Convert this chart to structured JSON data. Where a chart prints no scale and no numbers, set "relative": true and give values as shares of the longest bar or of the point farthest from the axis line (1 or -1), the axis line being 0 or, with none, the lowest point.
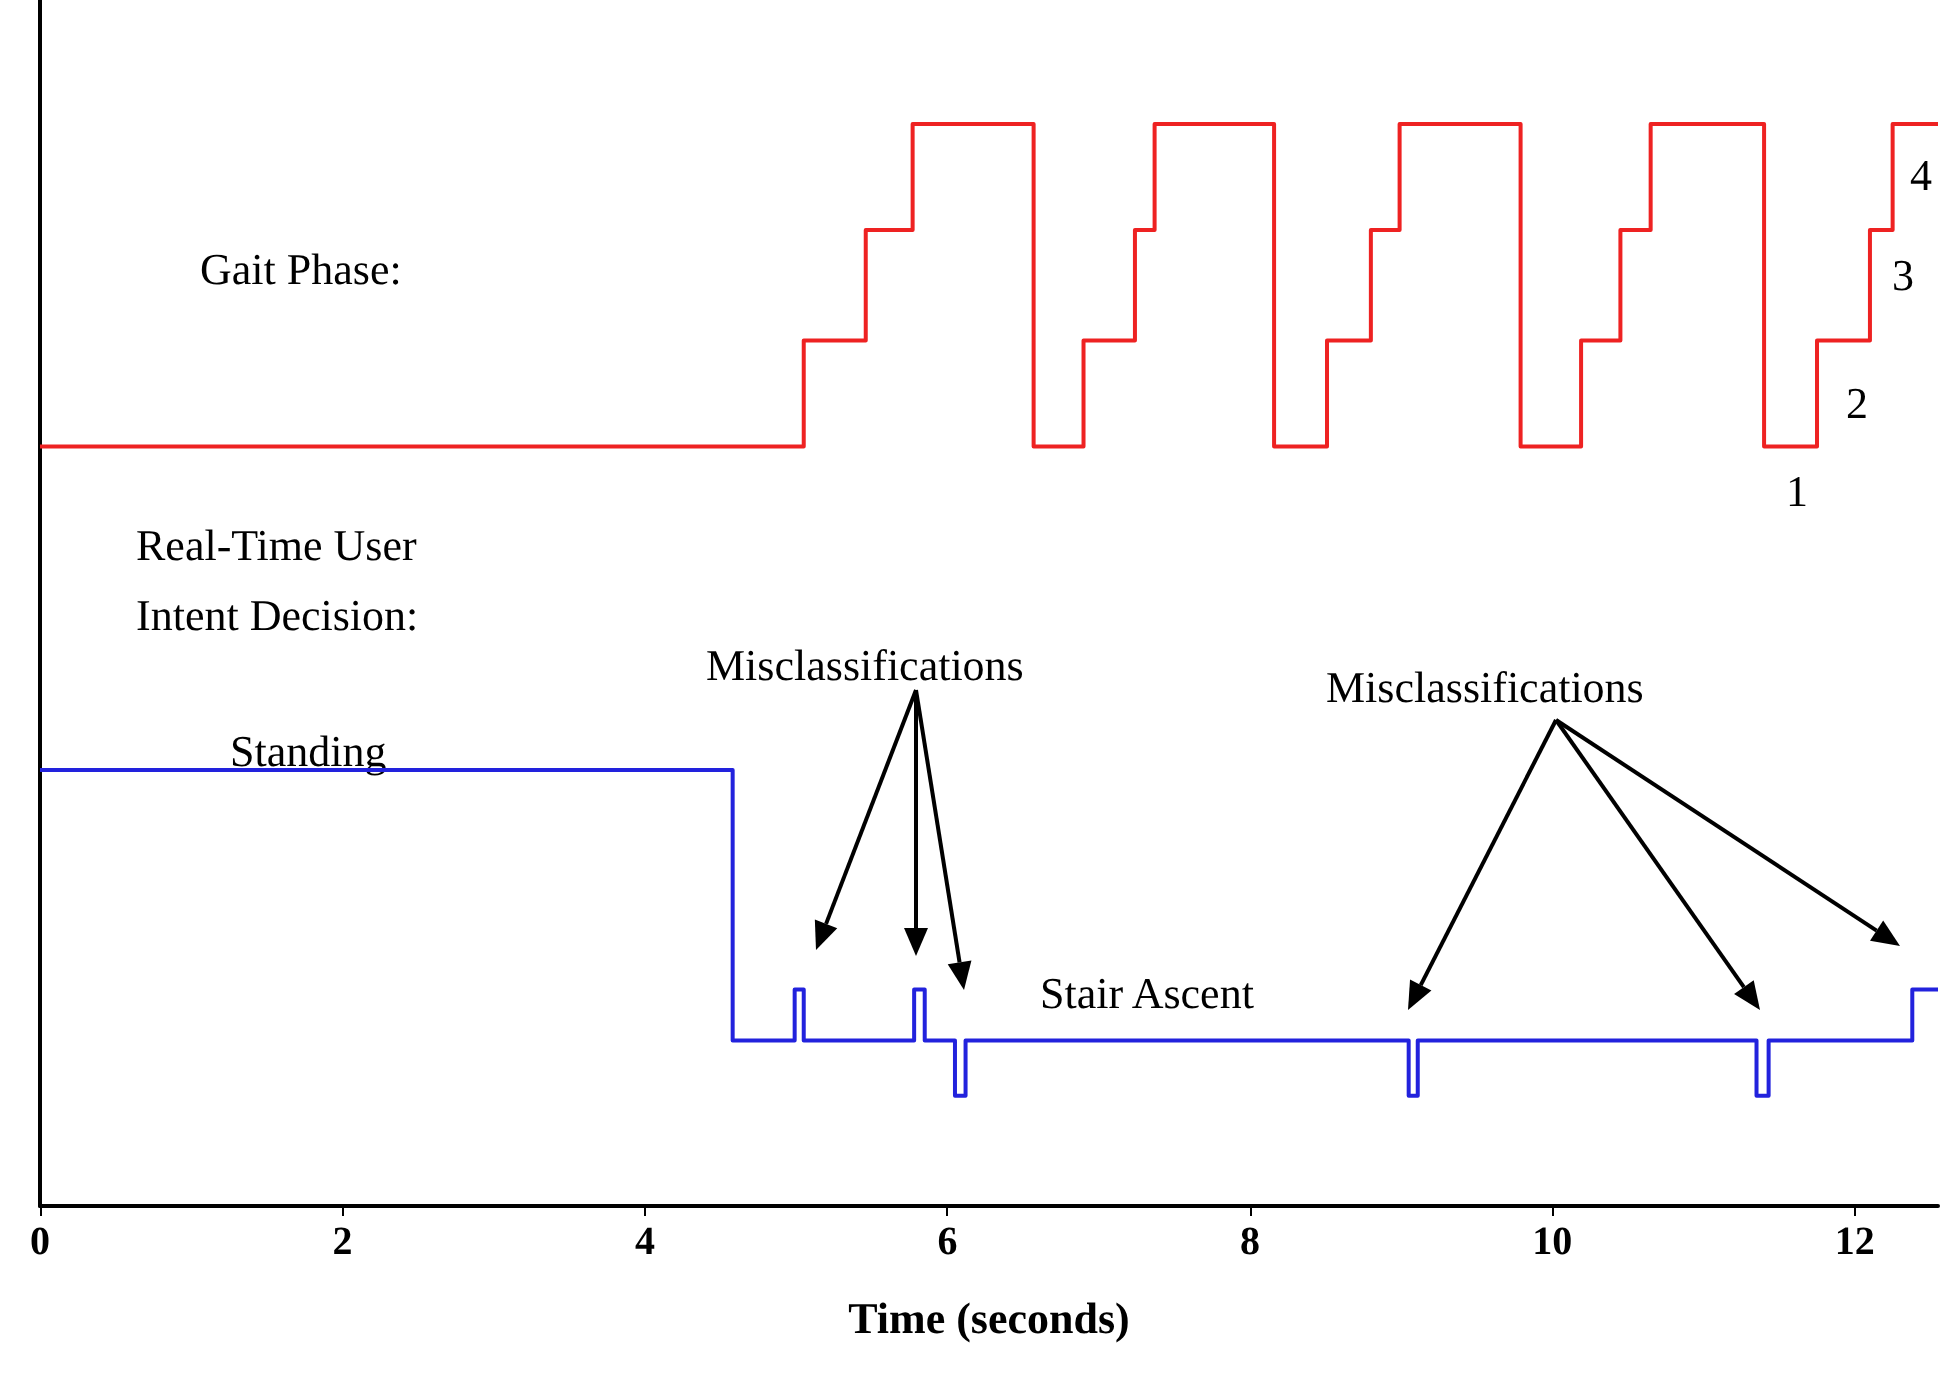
{
  "chart_data": {
    "type": "step",
    "relative": true,
    "xlabel": "Time (seconds)",
    "xlim": [
      0,
      12.55
    ],
    "xticks": [
      0,
      2,
      4,
      6,
      8,
      10,
      12
    ],
    "grid": false,
    "marker": "none",
    "line_style": "solid",
    "series": [
      {
        "color": "#ee2222",
        "x": [
          0,
          5.05,
          5.46,
          5.77,
          6.57,
          6.9,
          7.24,
          7.37,
          8.16,
          8.51,
          8.8,
          8.99,
          9.79,
          10.19,
          10.45,
          10.65,
          11.4,
          11.75,
          12.1,
          12.25,
          12.55
        ],
        "values": [
          0.702,
          0.8,
          0.902,
          1,
          0.702,
          0.8,
          0.902,
          1,
          0.702,
          0.8,
          0.902,
          1,
          0.702,
          0.8,
          0.902,
          1,
          0.702,
          0.8,
          0.902,
          1,
          1
        ]
      },
      {
        "color": "#2222dd",
        "x": [
          0,
          4.58,
          4.99,
          5.05,
          5.78,
          5.85,
          6.05,
          6.12,
          9.05,
          9.11,
          11.35,
          11.43,
          12.38,
          12.55
        ],
        "values": [
          0.403,
          0.153,
          0.2,
          0.153,
          0.2,
          0.153,
          0.102,
          0.153,
          0.102,
          0.153,
          0.102,
          0.153,
          0.2,
          0.2
        ]
      }
    ],
    "annotations": [
      "Gait Phase:",
      "Real-Time User Intent Decision:",
      "Standing",
      "Stair Ascent",
      "Misclassifications",
      "Misclassifications",
      "1",
      "2",
      "3",
      "4"
    ]
  }
}
